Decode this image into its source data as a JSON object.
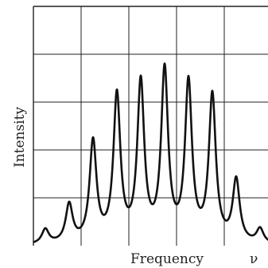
{
  "chart_data": {
    "type": "line",
    "xlabel": "Frequency",
    "ylabel": "Intensity",
    "x_axis_symbol": "ν",
    "grid": true,
    "grid_columns": 5,
    "grid_rows": 5,
    "xlim": [
      0,
      5
    ],
    "ylim": [
      0,
      5
    ],
    "tick_labels": false,
    "series": [
      {
        "peaks": [
          {
            "x": 0.25,
            "y": 0.3
          },
          {
            "x": 0.75,
            "y": 0.8
          },
          {
            "x": 1.25,
            "y": 2.1
          },
          {
            "x": 1.75,
            "y": 3.05
          },
          {
            "x": 2.25,
            "y": 3.3
          },
          {
            "x": 2.75,
            "y": 3.55
          },
          {
            "x": 3.25,
            "y": 3.3
          },
          {
            "x": 3.75,
            "y": 3.05
          },
          {
            "x": 4.25,
            "y": 1.3
          },
          {
            "x": 4.75,
            "y": 0.3
          }
        ],
        "baseline": 0.0,
        "peak_width": 0.13,
        "color": "#111111"
      }
    ]
  }
}
